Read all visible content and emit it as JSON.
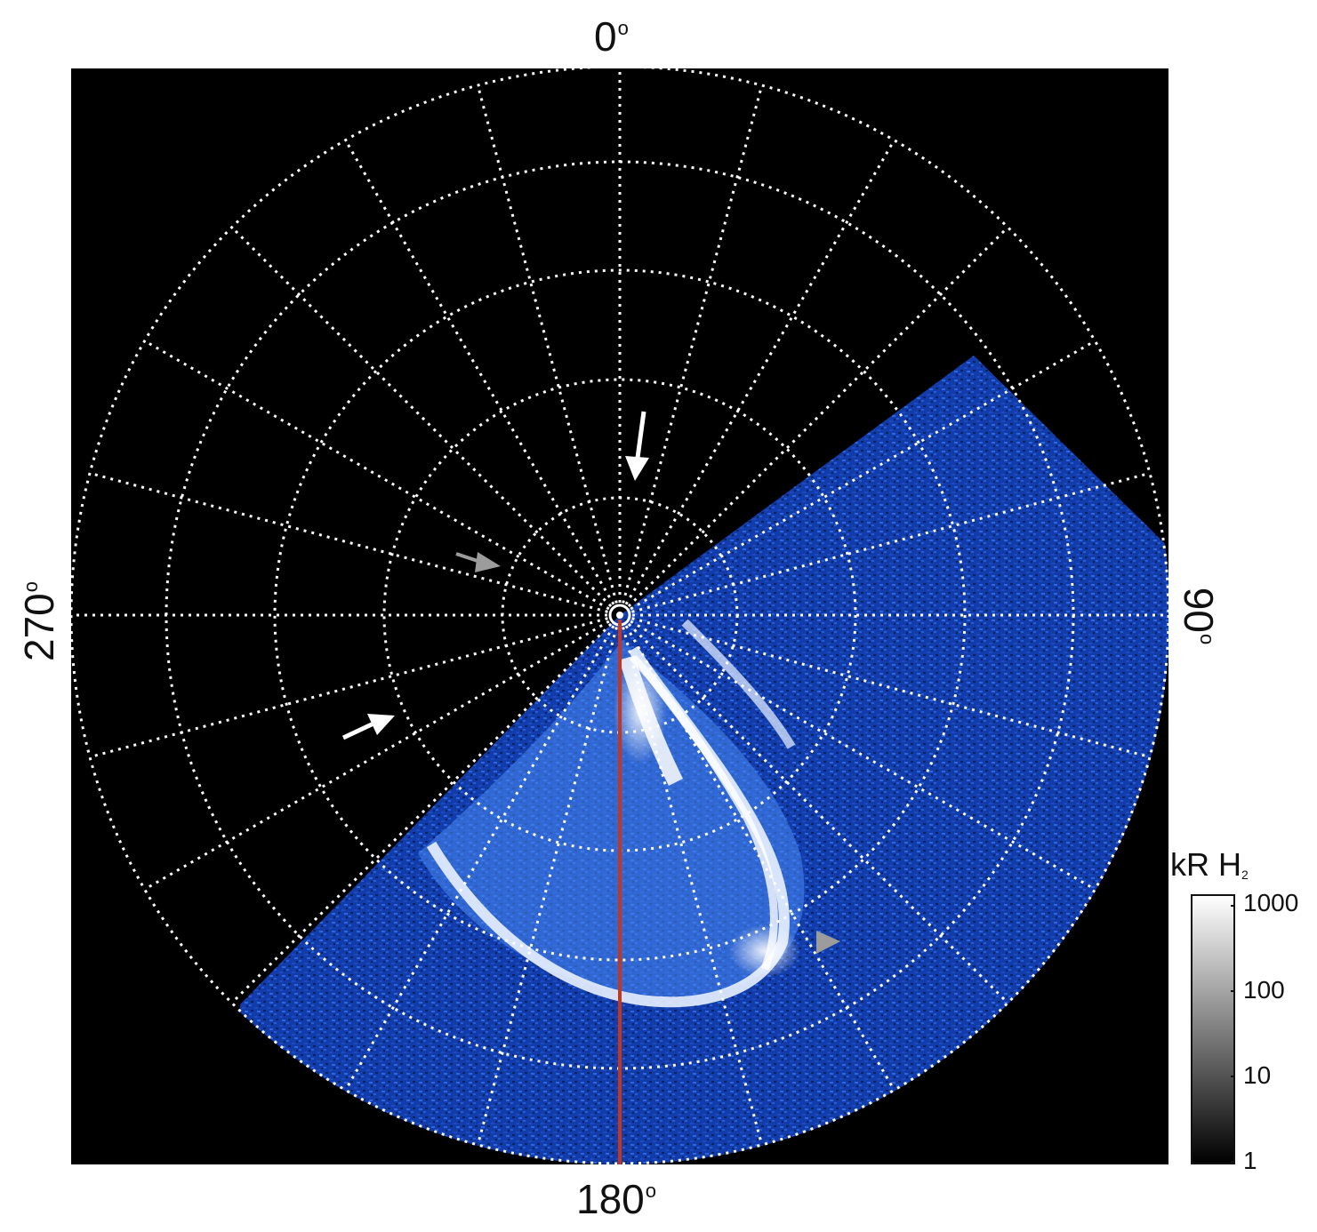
{
  "axis_labels": {
    "top": "0",
    "bottom": "180",
    "left": "270",
    "right": "90",
    "degree_symbol": "o"
  },
  "colorbar": {
    "title": "kR H",
    "title_subscript": "2",
    "ticks": [
      "1000",
      "100",
      "10",
      "1"
    ]
  },
  "colors": {
    "background": "#000000",
    "aurora_blue": "#1f5ad8",
    "aurora_white": "#f4f8ff",
    "meridian_line": "#c8361a",
    "grid": "#ffffff",
    "arrow_white": "#ffffff",
    "arrow_gray": "#9c9c9c"
  },
  "icons": [
    "white-arrow-icon",
    "gray-arrow-icon",
    "gray-triangle-icon",
    "pole-marker-icon"
  ]
}
